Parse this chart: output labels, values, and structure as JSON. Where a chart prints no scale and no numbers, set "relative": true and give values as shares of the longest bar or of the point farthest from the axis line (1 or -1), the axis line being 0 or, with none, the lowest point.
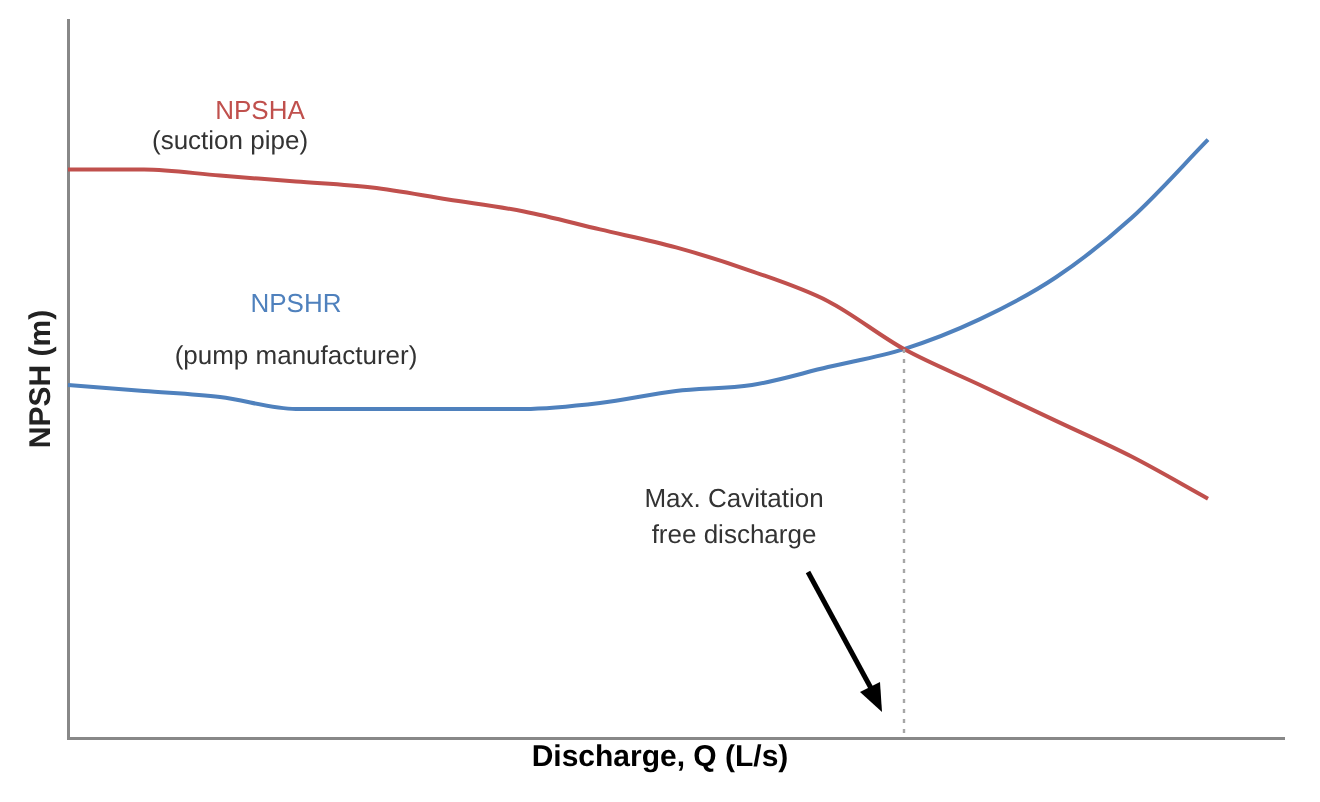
{
  "chart_data": {
    "type": "line",
    "relative": true,
    "xlabel": "Discharge, Q (L/s)",
    "ylabel": "NPSH (m)",
    "categories": [
      null,
      null,
      null,
      null,
      null,
      null,
      null,
      null,
      null,
      null,
      null,
      null,
      null,
      null,
      null,
      null,
      null
    ],
    "series": [
      {
        "name": "NPSHA",
        "color": "#c0504d",
        "values": [
          0.95,
          0.95,
          0.94,
          0.93,
          0.92,
          0.9,
          0.88,
          0.85,
          0.82,
          0.78,
          0.73,
          0.65,
          0.59,
          0.53,
          0.47,
          0.4,
          null
        ]
      },
      {
        "name": "NPSHR",
        "color": "#4f81bd",
        "values": [
          0.59,
          0.58,
          0.57,
          0.55,
          0.55,
          0.55,
          0.55,
          0.56,
          0.58,
          0.59,
          0.62,
          0.65,
          0.7,
          0.77,
          0.87,
          1.0,
          null
        ]
      }
    ],
    "annotations": [
      "(suction pipe)",
      "(pump manufacturer)",
      "Max. Cavitation free discharge"
    ],
    "grid": false,
    "legend": false,
    "marker": "none",
    "line_style": "solid",
    "tick_labels": false
  }
}
